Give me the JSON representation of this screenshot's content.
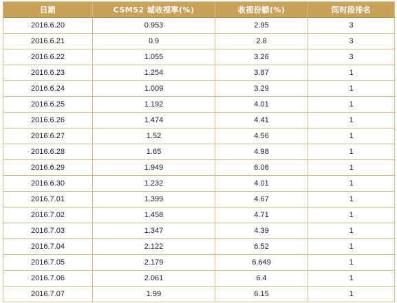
{
  "table": {
    "headers": [
      "日期",
      "CSM52 城收视率(%)",
      "收视份额(%)",
      "同时段排名"
    ],
    "rows": [
      [
        "2016.6.20",
        "0.953",
        "2.95",
        "3"
      ],
      [
        "2016.6.21",
        "0.9",
        "2.8",
        "3"
      ],
      [
        "2016.6.22",
        "1.055",
        "3.26",
        "3"
      ],
      [
        "2016.6.23",
        "1.254",
        "3.87",
        "1"
      ],
      [
        "2016.6.24",
        "1.009",
        "3.29",
        "1"
      ],
      [
        "2016.6.25",
        "1.192",
        "4.01",
        "1"
      ],
      [
        "2016.6.26",
        "1.474",
        "4.41",
        "1"
      ],
      [
        "2016.6.27",
        "1.52",
        "4.56",
        "1"
      ],
      [
        "2016.6.28",
        "1.65",
        "4.98",
        "1"
      ],
      [
        "2016.6.29",
        "1.949",
        "6.06",
        "1"
      ],
      [
        "2016.6.30",
        "1.232",
        "4.01",
        "1"
      ],
      [
        "2016.7.01",
        "1.399",
        "4.67",
        "1"
      ],
      [
        "2016.7.02",
        "1.458",
        "4.71",
        "1"
      ],
      [
        "2016.7.03",
        "1.347",
        "4.39",
        "1"
      ],
      [
        "2016.7.04",
        "2.122",
        "6.52",
        "1"
      ],
      [
        "2016.7.05",
        "2.179",
        "6.649",
        "1"
      ],
      [
        "2016.7.06",
        "2.061",
        "6.4",
        "1"
      ],
      [
        "2016.7.07",
        "1.99",
        "6.15",
        "1"
      ]
    ]
  },
  "colors": {
    "header_bg": "#c9a25a",
    "header_text": "#ffffff",
    "border": "#d4b98a"
  }
}
